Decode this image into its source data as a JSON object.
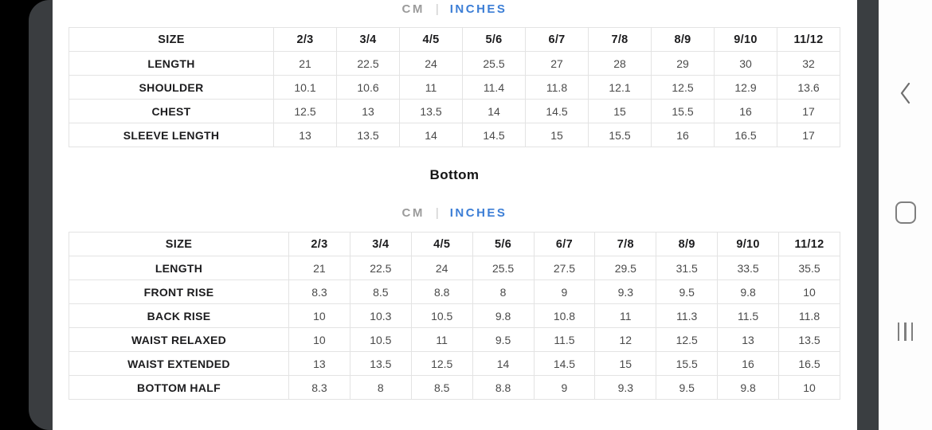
{
  "unit_toggle": {
    "cm_label": "CM",
    "divider_glyph": "|",
    "inches_label": "INCHES",
    "active_unit": "INCHES"
  },
  "section_title_bottom": "Bottom",
  "top_table": {
    "header": [
      "SIZE",
      "2/3",
      "3/4",
      "4/5",
      "5/6",
      "6/7",
      "7/8",
      "8/9",
      "9/10",
      "11/12"
    ],
    "rows": [
      {
        "label": "LENGTH",
        "values": [
          "21",
          "22.5",
          "24",
          "25.5",
          "27",
          "28",
          "29",
          "30",
          "32"
        ]
      },
      {
        "label": "SHOULDER",
        "values": [
          "10.1",
          "10.6",
          "11",
          "11.4",
          "11.8",
          "12.1",
          "12.5",
          "12.9",
          "13.6"
        ]
      },
      {
        "label": "CHEST",
        "values": [
          "12.5",
          "13",
          "13.5",
          "14",
          "14.5",
          "15",
          "15.5",
          "16",
          "17"
        ]
      },
      {
        "label": "SLEEVE LENGTH",
        "values": [
          "13",
          "13.5",
          "14",
          "14.5",
          "15",
          "15.5",
          "16",
          "16.5",
          "17"
        ]
      }
    ]
  },
  "bottom_table": {
    "header": [
      "SIZE",
      "2/3",
      "3/4",
      "4/5",
      "5/6",
      "6/7",
      "7/8",
      "8/9",
      "9/10",
      "11/12"
    ],
    "rows": [
      {
        "label": "LENGTH",
        "values": [
          "21",
          "22.5",
          "24",
          "25.5",
          "27.5",
          "29.5",
          "31.5",
          "33.5",
          "35.5"
        ]
      },
      {
        "label": "FRONT RISE",
        "values": [
          "8.3",
          "8.5",
          "8.8",
          "8",
          "9",
          "9.3",
          "9.5",
          "9.8",
          "10"
        ]
      },
      {
        "label": "BACK RISE",
        "values": [
          "10",
          "10.3",
          "10.5",
          "9.8",
          "10.8",
          "11",
          "11.3",
          "11.5",
          "11.8"
        ]
      },
      {
        "label": "WAIST RELAXED",
        "values": [
          "10",
          "10.5",
          "11",
          "9.5",
          "11.5",
          "12",
          "12.5",
          "13",
          "13.5"
        ]
      },
      {
        "label": "WAIST EXTENDED",
        "values": [
          "13",
          "13.5",
          "12.5",
          "14",
          "14.5",
          "15",
          "15.5",
          "16",
          "16.5"
        ]
      },
      {
        "label": "BOTTOM HALF",
        "values": [
          "8.3",
          "8",
          "8.5",
          "8.8",
          "9",
          "9.3",
          "9.5",
          "9.8",
          "10"
        ]
      }
    ]
  },
  "side_nav": {
    "back_icon": "chevron-left",
    "home_icon": "rounded-square-home",
    "recents_icon": "three-vertical-bars"
  },
  "colors": {
    "accent_blue": "#3c7ed6",
    "inactive_gray": "#9b9b9b",
    "table_border": "#e3e3e3",
    "panel_dark": "#3a3d40",
    "nav_icon_gray": "#7f7f7f"
  }
}
